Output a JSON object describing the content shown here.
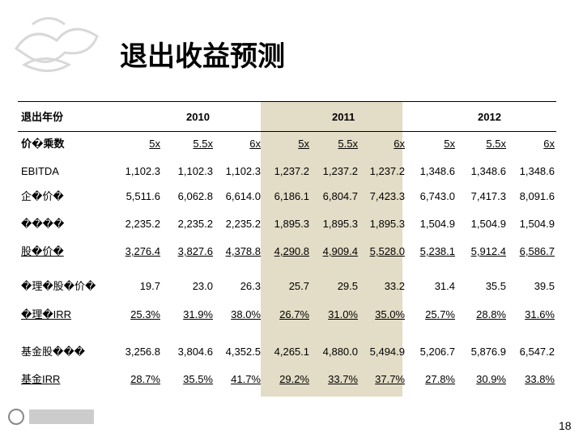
{
  "header": {
    "title": "退出收益预测"
  },
  "table": {
    "year_label": "退出年份",
    "years": [
      "2010",
      "2011",
      "2012"
    ],
    "multiple_label": "价�乘数",
    "multiples": [
      "5x",
      "5.5x",
      "6x",
      "5x",
      "5.5x",
      "6x",
      "5x",
      "5.5x",
      "6x"
    ],
    "rows": [
      {
        "label": "EBITDA",
        "values": [
          "1,102.3",
          "1,102.3",
          "1,102.3",
          "1,237.2",
          "1,237.2",
          "1,237.2",
          "1,348.6",
          "1,348.6",
          "1,348.6"
        ]
      },
      {
        "label": "企�价�",
        "values": [
          "5,511.6",
          "6,062.8",
          "6,614.0",
          "6,186.1",
          "6,804.7",
          "7,423.3",
          "6,743.0",
          "7,417.3",
          "8,091.6"
        ]
      },
      {
        "label": "����",
        "values": [
          "2,235.2",
          "2,235.2",
          "2,235.2",
          "1,895.3",
          "1,895.3",
          "1,895.3",
          "1,504.9",
          "1,504.9",
          "1,504.9"
        ]
      },
      {
        "label": "股�价�",
        "values": [
          "3,276.4",
          "3,827.6",
          "4,378.8",
          "4,290.8",
          "4,909.4",
          "5,528.0",
          "5,238.1",
          "5,912.4",
          "6,586.7"
        ]
      },
      {
        "label": "�理�股�价�",
        "values": [
          "19.7",
          "23.0",
          "26.3",
          "25.7",
          "29.5",
          "33.2",
          "31.4",
          "35.5",
          "39.5"
        ]
      },
      {
        "label": "�理�IRR",
        "values": [
          "25.3%",
          "31.9%",
          "38.0%",
          "26.7%",
          "31.0%",
          "35.0%",
          "25.7%",
          "28.8%",
          "31.6%"
        ]
      },
      {
        "label": "基金股���",
        "values": [
          "3,256.8",
          "3,804.6",
          "4,352.5",
          "4,265.1",
          "4,880.0",
          "5,494.9",
          "5,206.7",
          "5,876.9",
          "6,547.2"
        ]
      },
      {
        "label": "基金IRR",
        "values": [
          "28.7%",
          "35.5%",
          "41.7%",
          "29.2%",
          "33.7%",
          "37.7%",
          "27.8%",
          "30.9%",
          "33.8%"
        ]
      }
    ]
  },
  "footer": {
    "page": "18"
  }
}
